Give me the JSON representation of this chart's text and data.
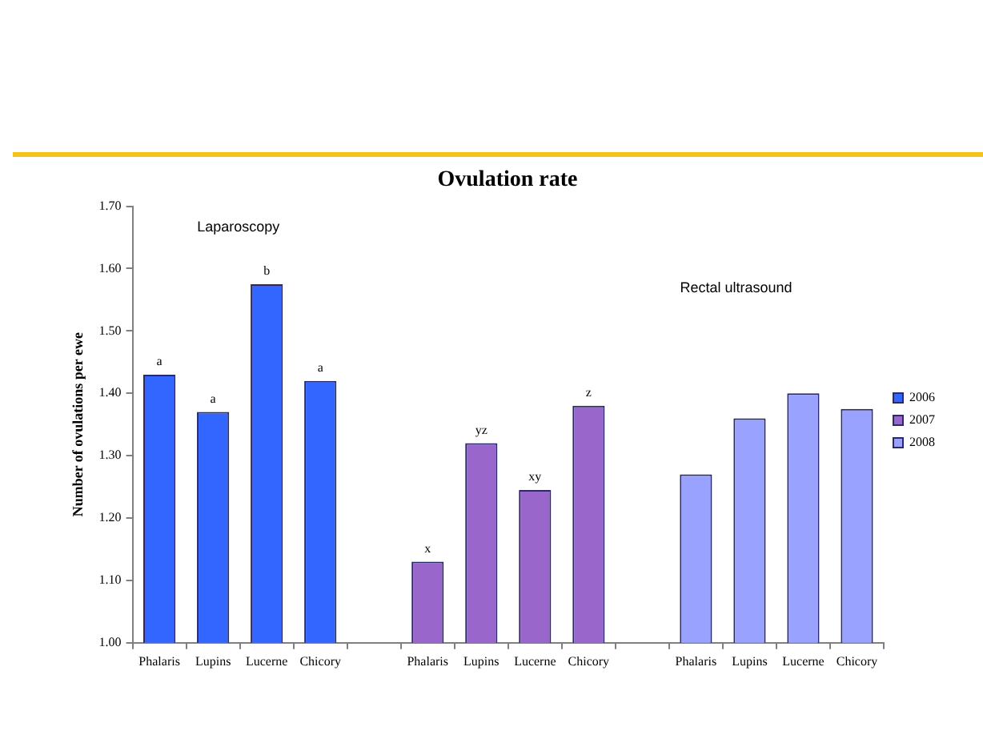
{
  "chart_data": {
    "type": "bar",
    "title": "Ovulation rate",
    "ylabel": "Number of ovulations per ewe",
    "categories": [
      "Phalaris",
      "Lupins",
      "Lucerne",
      "Chicory",
      null,
      "Phalaris",
      "Lupins",
      "Lucerne",
      "Chicory",
      null,
      "Phalaris",
      "Lupins",
      "Lucerne",
      "Chicory"
    ],
    "series": [
      {
        "name": "2006",
        "color": "#3366ff",
        "values": [
          1.43,
          1.37,
          1.575,
          1.42,
          null,
          null,
          null,
          null,
          null,
          null,
          null,
          null,
          null,
          null
        ],
        "value_labels": [
          "a",
          "a",
          "b",
          "a",
          null,
          null,
          null,
          null,
          null,
          null,
          null,
          null,
          null,
          null
        ]
      },
      {
        "name": "2007",
        "color": "#9966cc",
        "values": [
          null,
          null,
          null,
          null,
          null,
          1.13,
          1.32,
          1.245,
          1.38,
          null,
          null,
          null,
          null,
          null
        ],
        "value_labels": [
          null,
          null,
          null,
          null,
          null,
          "x",
          "yz",
          "xy",
          "z",
          null,
          null,
          null,
          null,
          null
        ]
      },
      {
        "name": "2008",
        "color": "#99a3ff",
        "values": [
          null,
          null,
          null,
          null,
          null,
          null,
          null,
          null,
          null,
          null,
          1.27,
          1.36,
          1.4,
          1.375
        ]
      }
    ],
    "ylim": [
      1,
      1.7
    ],
    "yticks": [
      {
        "value": 1,
        "label": "1.00"
      },
      {
        "value": 1.1,
        "label": "1.10"
      },
      {
        "value": 1.2,
        "label": "1.20"
      },
      {
        "value": 1.3,
        "label": "1.30"
      },
      {
        "value": 1.4,
        "label": "1.40"
      },
      {
        "value": 1.5,
        "label": "1.50"
      },
      {
        "value": 1.6,
        "label": "1.60"
      },
      {
        "value": 1.7,
        "label": "1.70"
      }
    ],
    "annotations": [
      "Laparoscopy",
      "Rectal ultrasound"
    ],
    "grid": false,
    "legend": "right"
  }
}
